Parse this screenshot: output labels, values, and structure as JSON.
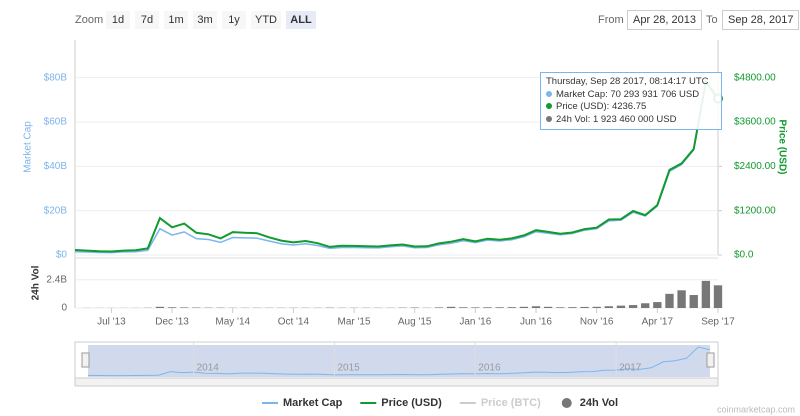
{
  "header": {
    "zoom_label": "Zoom",
    "buttons": [
      "1d",
      "7d",
      "1m",
      "3m",
      "1y",
      "YTD",
      "ALL"
    ],
    "active": "ALL",
    "from_label": "From",
    "from": "Apr 28, 2013",
    "to_label": "To",
    "to": "Sep 28, 2017"
  },
  "tooltip": {
    "header": "Thursday, Sep 28 2017, 08:14:17 UTC",
    "lines": [
      "Market Cap: 70 293 931 706 USD",
      "Price (USD): 4236.75",
      "24h Vol: 1 923 460 000 USD"
    ]
  },
  "chart_data": {
    "type": "line",
    "x": [
      "2013-04",
      "2013-05",
      "2013-06",
      "2013-07",
      "2013-08",
      "2013-09",
      "2013-10",
      "2013-11",
      "2013-12",
      "2014-01",
      "2014-02",
      "2014-03",
      "2014-04",
      "2014-05",
      "2014-06",
      "2014-07",
      "2014-08",
      "2014-09",
      "2014-10",
      "2014-11",
      "2014-12",
      "2015-01",
      "2015-02",
      "2015-03",
      "2015-04",
      "2015-05",
      "2015-06",
      "2015-07",
      "2015-08",
      "2015-09",
      "2015-10",
      "2015-11",
      "2015-12",
      "2016-01",
      "2016-02",
      "2016-03",
      "2016-04",
      "2016-05",
      "2016-06",
      "2016-07",
      "2016-08",
      "2016-09",
      "2016-10",
      "2016-11",
      "2016-12",
      "2017-01",
      "2017-02",
      "2017-03",
      "2017-04",
      "2017-05",
      "2017-06",
      "2017-07",
      "2017-08",
      "2017-09"
    ],
    "xticks": [
      {
        "value": "2013-07",
        "label": "Jul '13"
      },
      {
        "value": "2013-12",
        "label": "Dec '13"
      },
      {
        "value": "2014-05",
        "label": "May '14"
      },
      {
        "value": "2014-10",
        "label": "Oct '14"
      },
      {
        "value": "2015-03",
        "label": "Mar '15"
      },
      {
        "value": "2015-08",
        "label": "Aug '15"
      },
      {
        "value": "2016-01",
        "label": "Jan '16"
      },
      {
        "value": "2016-06",
        "label": "Jun '16"
      },
      {
        "value": "2016-11",
        "label": "Nov '16"
      },
      {
        "value": "2017-04",
        "label": "Apr '17"
      },
      {
        "value": "2017-09",
        "label": "Sep '17"
      }
    ],
    "ylabel": "Market Cap",
    "y2label": "Price (USD)",
    "ylim": [
      0,
      97000000000.0
    ],
    "yticks": [
      {
        "value": 0,
        "label": "$0"
      },
      {
        "value": 20000000000.0,
        "label": "$20B"
      },
      {
        "value": 40000000000.0,
        "label": "$40B"
      },
      {
        "value": 60000000000.0,
        "label": "$60B"
      },
      {
        "value": 80000000000.0,
        "label": "$80B"
      }
    ],
    "y2lim": [
      0,
      5820
    ],
    "y2ticks": [
      {
        "value": 0,
        "label": "$0.0"
      },
      {
        "value": 1200,
        "label": "$1200.00"
      },
      {
        "value": 2400,
        "label": "$2400.00"
      },
      {
        "value": 3600,
        "label": "$3600.00"
      },
      {
        "value": 4800,
        "label": "$4800.00"
      }
    ],
    "series": [
      {
        "name": "Market Cap",
        "color": "#7cb5ec",
        "values": [
          1500000000.0,
          1350000000.0,
          1130000000.0,
          1080000000.0,
          1380000000.0,
          1500000000.0,
          2100000000.0,
          11800000000.0,
          9000000000.0,
          10400000000.0,
          7400000000.0,
          7000000000.0,
          5700000000.0,
          7900000000.0,
          7700000000.0,
          7600000000.0,
          6300000000.0,
          5100000000.0,
          4500000000.0,
          5100000000.0,
          4300000000.0,
          3000000000.0,
          3400000000.0,
          3400000000.0,
          3300000000.0,
          3200000000.0,
          3700000000.0,
          4100000000.0,
          3300000000.0,
          3400000000.0,
          4600000000.0,
          5300000000.0,
          6400000000.0,
          5600000000.0,
          6700000000.0,
          6300000000.0,
          6900000000.0,
          8200000000.0,
          10500000000.0,
          9800000000.0,
          9100000000.0,
          9700000000.0,
          11200000000.0,
          11900000000.0,
          15400000000.0,
          15700000000.0,
          19300000000.0,
          17600000000.0,
          22100000000.0,
          37700000000.0,
          40800000000.0,
          47400000000.0,
          77800000000.0,
          70293931706
        ]
      },
      {
        "name": "Price (USD)",
        "color": "#119a2e",
        "axis": "y2",
        "values": [
          135,
          120,
          100,
          95,
          120,
          130,
          180,
          1000,
          750,
          850,
          600,
          560,
          450,
          620,
          600,
          590,
          480,
          390,
          340,
          380,
          320,
          220,
          250,
          245,
          235,
          230,
          260,
          285,
          230,
          236,
          315,
          360,
          430,
          370,
          440,
          415,
          450,
          530,
          670,
          625,
          575,
          610,
          700,
          740,
          960,
          970,
          1190,
          1080,
          1350,
          2300,
          2480,
          2870,
          4700,
          4236.75
        ]
      },
      {
        "name": "Price (BTC)",
        "color": "#cccccc"
      }
    ],
    "volume": {
      "name": "24h Vol",
      "label": "24h Vol",
      "color": "#777777",
      "ylim": [
        0,
        3900000000.0
      ],
      "yticks": [
        0,
        {
          "value": 2400000000.0,
          "label": "2.4B"
        }
      ],
      "values": [
        0,
        10000000.0,
        10000000.0,
        10000000.0,
        10000000.0,
        10000000.0,
        20000000.0,
        100000000.0,
        60000000.0,
        50000000.0,
        40000000.0,
        30000000.0,
        30000000.0,
        20000000.0,
        20000000.0,
        20000000.0,
        20000000.0,
        20000000.0,
        20000000.0,
        20000000.0,
        20000000.0,
        30000000.0,
        20000000.0,
        20000000.0,
        20000000.0,
        20000000.0,
        20000000.0,
        30000000.0,
        40000000.0,
        20000000.0,
        50000000.0,
        100000000.0,
        60000000.0,
        50000000.0,
        60000000.0,
        60000000.0,
        70000000.0,
        100000000.0,
        150000000.0,
        100000000.0,
        60000000.0,
        70000000.0,
        90000000.0,
        100000000.0,
        150000000.0,
        200000000.0,
        250000000.0,
        400000000.0,
        500000000.0,
        1200000000.0,
        1500000000.0,
        1100000000.0,
        2300000000.0,
        1923460000.0
      ]
    },
    "navigator_labels": [
      {
        "value": "2014-01",
        "label": "2014"
      },
      {
        "value": "2015-01",
        "label": "2015"
      },
      {
        "value": "2016-01",
        "label": "2016"
      },
      {
        "value": "2017-01",
        "label": "2017"
      }
    ],
    "credits": "coinmarketcap.com"
  }
}
